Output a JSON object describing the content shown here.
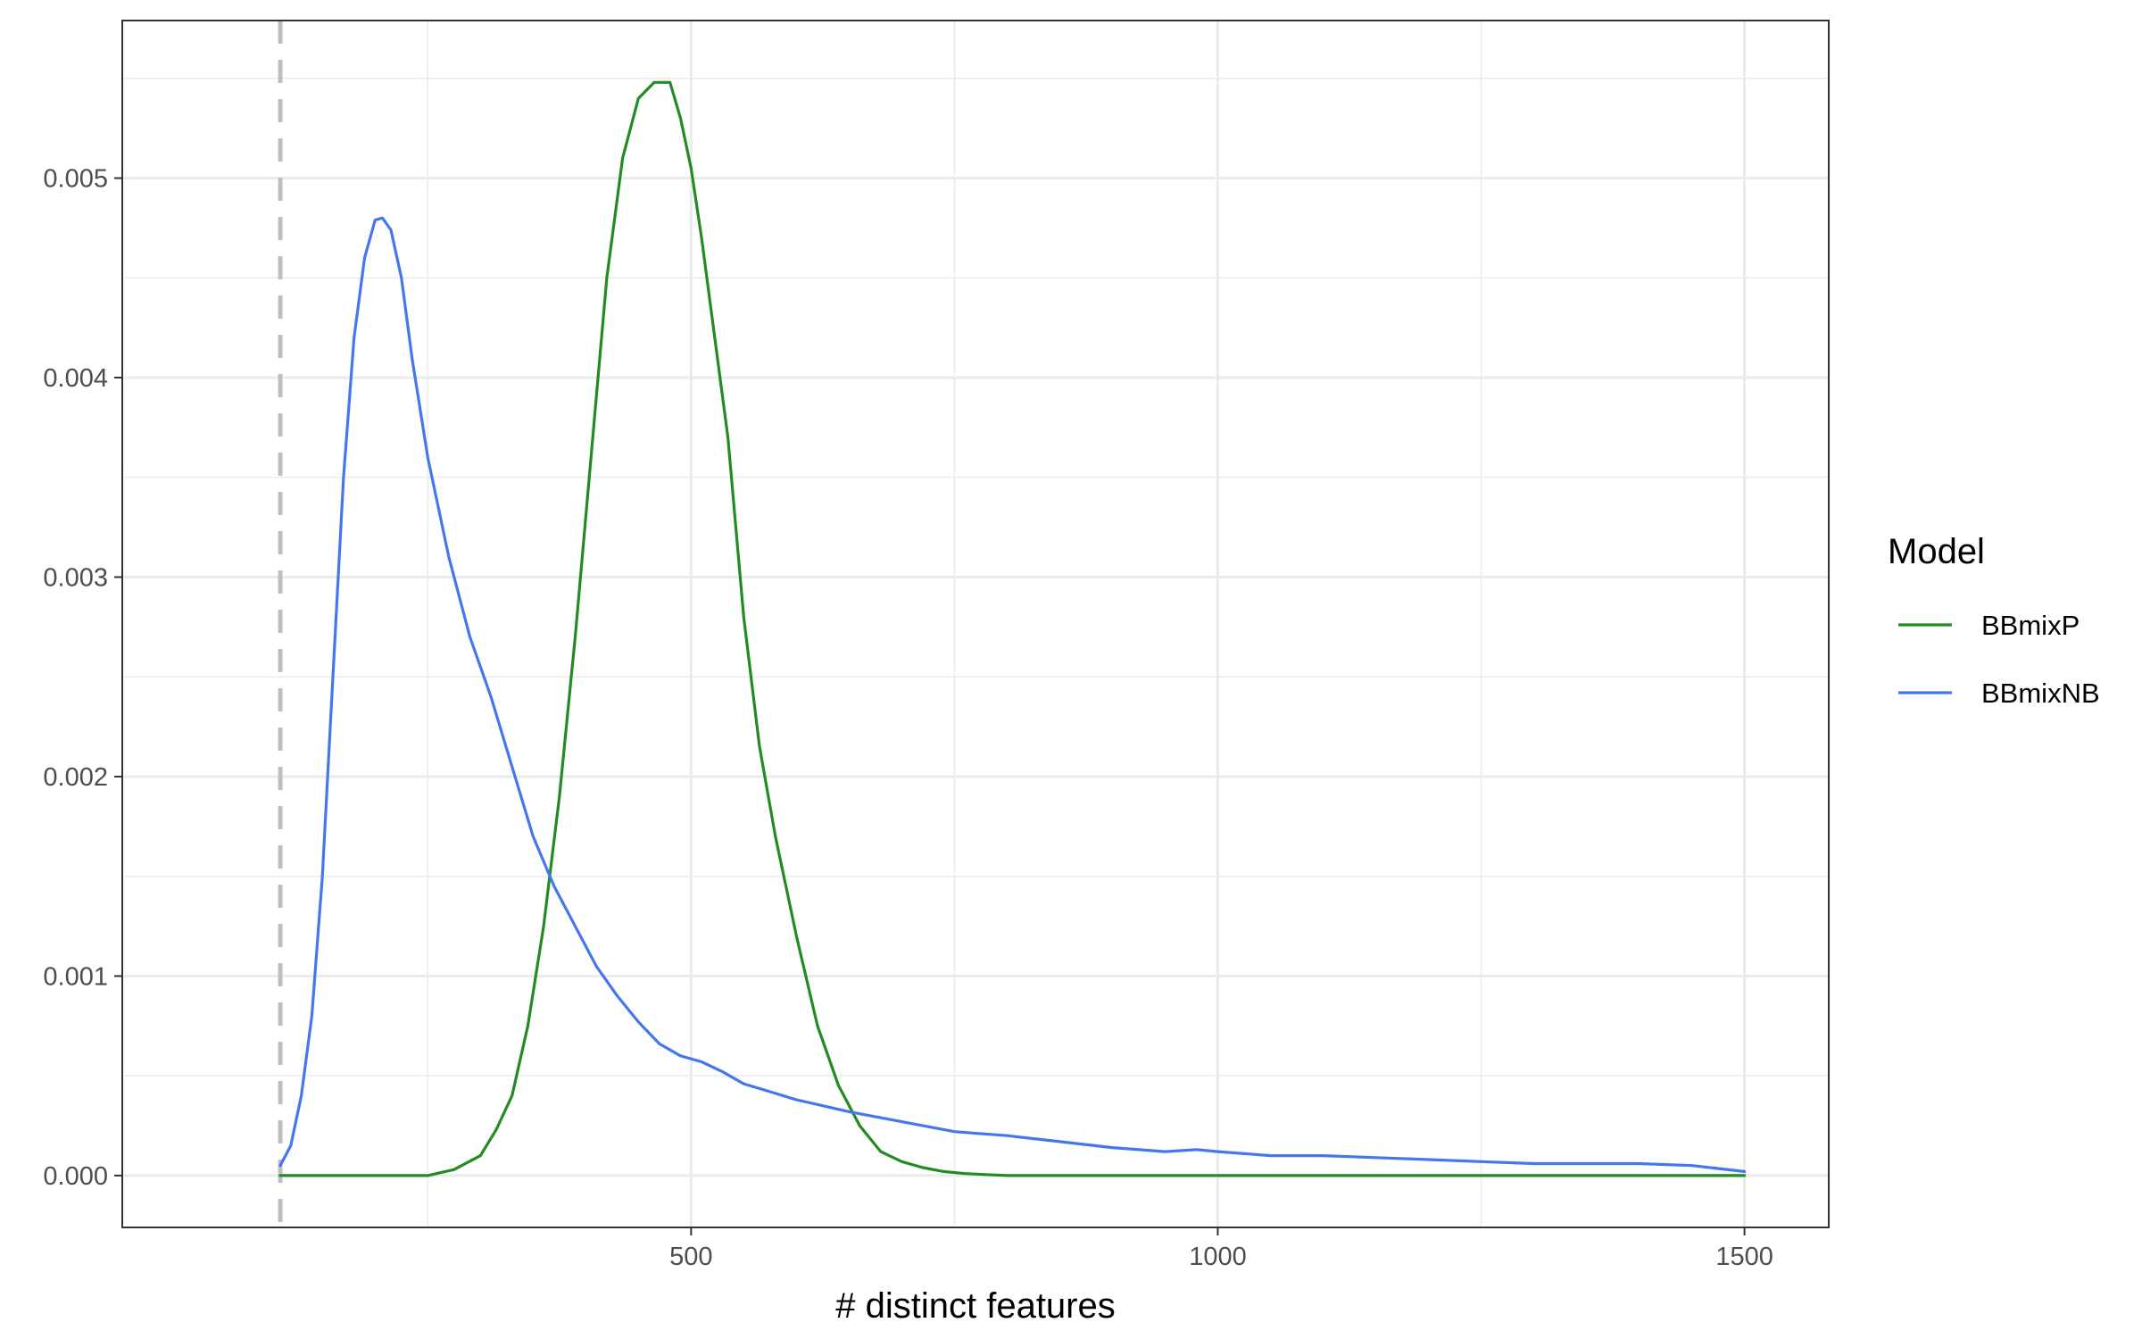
{
  "chart_data": {
    "type": "line",
    "title": "",
    "xlabel": "# distinct features",
    "ylabel": "",
    "xlim": [
      -40,
      1580
    ],
    "ylim": [
      -0.00026,
      0.00579
    ],
    "x_ticks": [
      500,
      1000,
      1500
    ],
    "x_tick_labels": [
      "500",
      "1000",
      "1500"
    ],
    "y_ticks": [
      0,
      0.001,
      0.002,
      0.003,
      0.004,
      0.005
    ],
    "y_tick_labels": [
      "0.000",
      "0.001",
      "0.002",
      "0.003",
      "0.004",
      "0.005"
    ],
    "grid": true,
    "legend_position": "right",
    "legend_title": "Model",
    "vline": {
      "x": 110,
      "style": "dashed",
      "color": "#bfbfbf"
    },
    "series": [
      {
        "name": "BBmixP",
        "color": "#228B22",
        "x": [
          110,
          200,
          250,
          275,
          300,
          315,
          330,
          345,
          360,
          375,
          390,
          405,
          420,
          435,
          450,
          465,
          480,
          490,
          500,
          510,
          520,
          535,
          550,
          565,
          580,
          600,
          620,
          640,
          660,
          680,
          700,
          720,
          740,
          760,
          780,
          800,
          850,
          900,
          1000,
          1200,
          1500
        ],
        "y": [
          0,
          0,
          0,
          3e-05,
          0.0001,
          0.00023,
          0.0004,
          0.00075,
          0.00125,
          0.0019,
          0.0027,
          0.0036,
          0.0045,
          0.0051,
          0.0054,
          0.00548,
          0.00548,
          0.0053,
          0.00505,
          0.0047,
          0.0043,
          0.0037,
          0.0028,
          0.00215,
          0.0017,
          0.0012,
          0.00075,
          0.00045,
          0.00025,
          0.00012,
          7e-05,
          4e-05,
          2e-05,
          1e-05,
          5e-06,
          0,
          0,
          0,
          0,
          0,
          0
        ]
      },
      {
        "name": "BBmixNB",
        "color": "#4477EE",
        "x": [
          110,
          120,
          130,
          140,
          150,
          160,
          170,
          180,
          190,
          200,
          207,
          215,
          225,
          235,
          250,
          270,
          290,
          310,
          330,
          350,
          370,
          390,
          410,
          430,
          450,
          470,
          490,
          510,
          530,
          550,
          575,
          600,
          625,
          650,
          700,
          750,
          800,
          850,
          900,
          950,
          980,
          1000,
          1050,
          1100,
          1150,
          1200,
          1250,
          1300,
          1350,
          1400,
          1450,
          1500
        ],
        "y": [
          5e-05,
          0.00015,
          0.0004,
          0.0008,
          0.0015,
          0.0025,
          0.0035,
          0.0042,
          0.0046,
          0.00479,
          0.0048,
          0.00474,
          0.0045,
          0.0041,
          0.0036,
          0.0031,
          0.0027,
          0.0024,
          0.00205,
          0.0017,
          0.00145,
          0.00125,
          0.00105,
          0.0009,
          0.00077,
          0.00066,
          0.0006,
          0.00057,
          0.00052,
          0.00046,
          0.00042,
          0.00038,
          0.00035,
          0.00032,
          0.00027,
          0.00022,
          0.0002,
          0.00017,
          0.00014,
          0.00012,
          0.00013,
          0.00012,
          0.0001,
          0.0001,
          9e-05,
          8e-05,
          7e-05,
          6e-05,
          6e-05,
          6e-05,
          5e-05,
          2e-05
        ]
      }
    ]
  }
}
